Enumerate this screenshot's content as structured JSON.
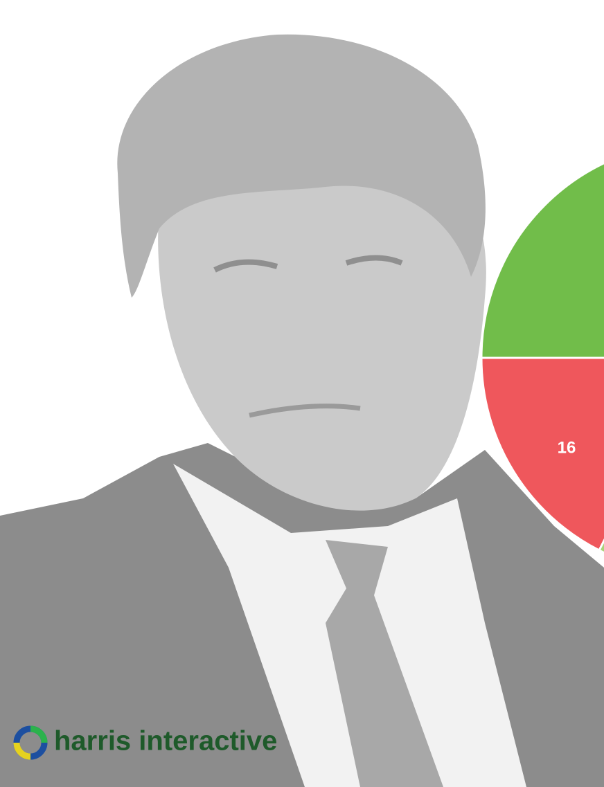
{
  "pie_label": "16",
  "logo": "harris interactive"
}
